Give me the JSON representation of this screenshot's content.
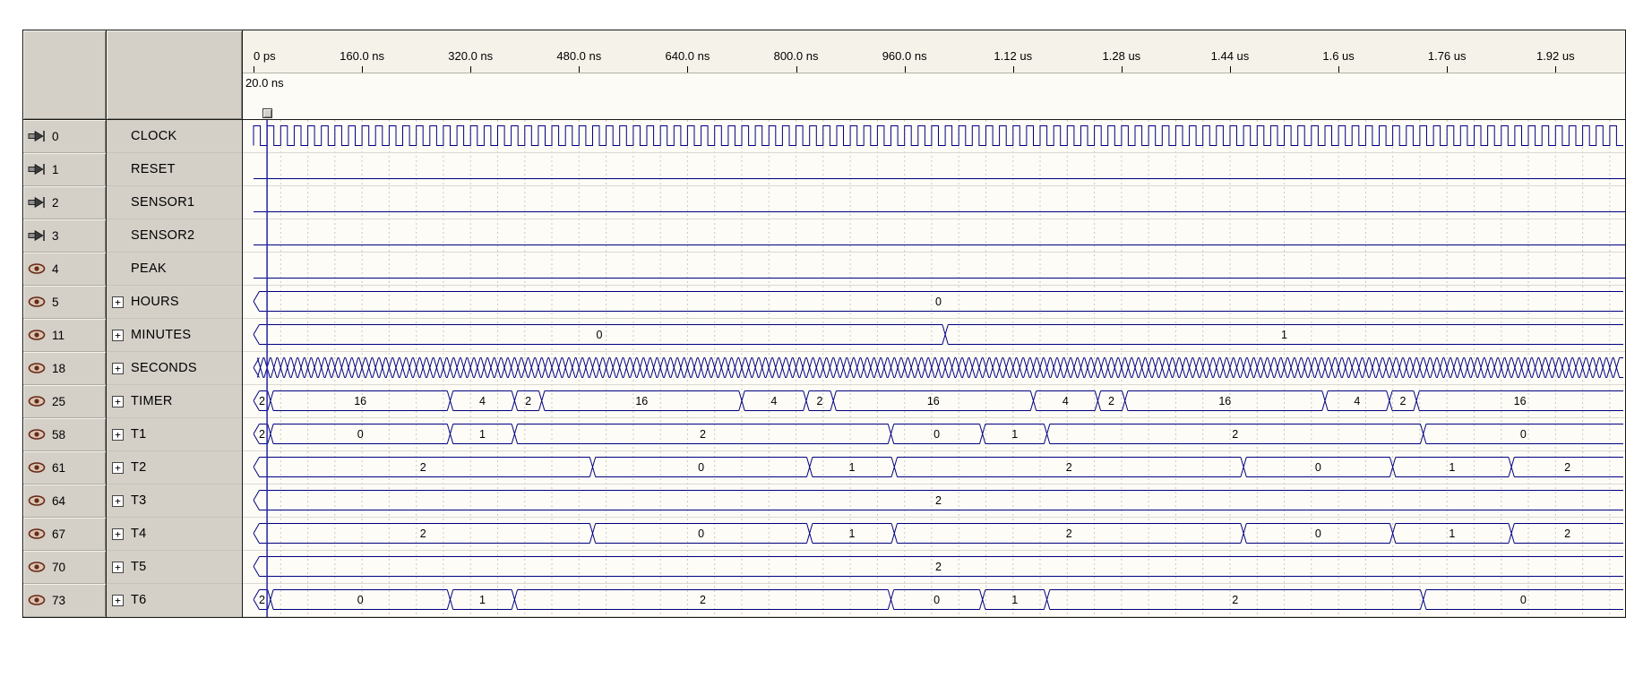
{
  "app": {
    "type": "waveform-simulation-viewer"
  },
  "colors": {
    "panel_bg": "#d4d0c8",
    "wave": "#000080",
    "cursor": "#2323a8",
    "grid": "#cdc9bd",
    "row_separator": "#dcd9cf",
    "header_bg": "#f5f2e9",
    "body_bg": "#fdfcf7",
    "text": "#000000"
  },
  "timebase": {
    "t_end_ns": 2020,
    "cursor_ns": 20,
    "cursor_label": "20.0 ns",
    "major_tick_ns": 160,
    "minor_grid_ns": 40,
    "clock_period_ns": 20,
    "busy_step_ns": 10
  },
  "timeline_ticks": [
    {
      "t": 0,
      "label": "0 ps"
    },
    {
      "t": 160,
      "label": "160.0 ns"
    },
    {
      "t": 320,
      "label": "320.0 ns"
    },
    {
      "t": 480,
      "label": "480.0 ns"
    },
    {
      "t": 640,
      "label": "640.0 ns"
    },
    {
      "t": 800,
      "label": "800.0 ns"
    },
    {
      "t": 960,
      "label": "960.0 ns"
    },
    {
      "t": 1120,
      "label": "1.12 us"
    },
    {
      "t": 1280,
      "label": "1.28 us"
    },
    {
      "t": 1440,
      "label": "1.44 us"
    },
    {
      "t": 1600,
      "label": "1.6 us"
    },
    {
      "t": 1760,
      "label": "1.76 us"
    },
    {
      "t": 1920,
      "label": "1.92 us"
    }
  ],
  "signals": [
    {
      "id": "0",
      "name": "CLOCK",
      "icon": "input-pin",
      "expandable": false,
      "kind": "clock"
    },
    {
      "id": "1",
      "name": "RESET",
      "icon": "input-pin",
      "expandable": false,
      "kind": "bit",
      "level": 0
    },
    {
      "id": "2",
      "name": "SENSOR1",
      "icon": "input-pin",
      "expandable": false,
      "kind": "bit",
      "level": 0
    },
    {
      "id": "3",
      "name": "SENSOR2",
      "icon": "input-pin",
      "expandable": false,
      "kind": "bit",
      "level": 0
    },
    {
      "id": "4",
      "name": "PEAK",
      "icon": "output-node",
      "expandable": false,
      "kind": "bit",
      "level": 0
    },
    {
      "id": "5",
      "name": "HOURS",
      "icon": "output-node",
      "expandable": true,
      "kind": "bus",
      "segments": [
        [
          "0",
          0,
          2020
        ]
      ]
    },
    {
      "id": "11",
      "name": "MINUTES",
      "icon": "output-node",
      "expandable": true,
      "kind": "bus",
      "segments": [
        [
          "0",
          0,
          1020
        ],
        [
          "1",
          1020,
          2020
        ]
      ]
    },
    {
      "id": "18",
      "name": "SECONDS",
      "icon": "output-node",
      "expandable": true,
      "kind": "busy"
    },
    {
      "id": "25",
      "name": "TIMER",
      "icon": "output-node",
      "expandable": true,
      "kind": "bus",
      "segments": [
        [
          "2",
          0,
          25
        ],
        [
          "16",
          25,
          290
        ],
        [
          "4",
          290,
          385
        ],
        [
          "2",
          385,
          425
        ],
        [
          "16",
          425,
          720
        ],
        [
          "4",
          720,
          815
        ],
        [
          "2",
          815,
          855
        ],
        [
          "16",
          855,
          1150
        ],
        [
          "4",
          1150,
          1245
        ],
        [
          "2",
          1245,
          1285
        ],
        [
          "16",
          1285,
          1580
        ],
        [
          "4",
          1580,
          1675
        ],
        [
          "2",
          1675,
          1715
        ],
        [
          "16",
          1715,
          2020
        ]
      ]
    },
    {
      "id": "58",
      "name": "T1",
      "icon": "output-node",
      "expandable": true,
      "kind": "bus",
      "segments": [
        [
          "2",
          0,
          25
        ],
        [
          "0",
          25,
          290
        ],
        [
          "1",
          290,
          385
        ],
        [
          "2",
          385,
          940
        ],
        [
          "0",
          940,
          1075
        ],
        [
          "1",
          1075,
          1170
        ],
        [
          "2",
          1170,
          1725
        ],
        [
          "0",
          1725,
          2020
        ]
      ]
    },
    {
      "id": "61",
      "name": "T2",
      "icon": "output-node",
      "expandable": true,
      "kind": "bus",
      "segments": [
        [
          "2",
          0,
          500
        ],
        [
          "0",
          500,
          820
        ],
        [
          "1",
          820,
          945
        ],
        [
          "2",
          945,
          1460
        ],
        [
          "0",
          1460,
          1680
        ],
        [
          "1",
          1680,
          1855
        ],
        [
          "2",
          1855,
          2020
        ]
      ]
    },
    {
      "id": "64",
      "name": "T3",
      "icon": "output-node",
      "expandable": true,
      "kind": "bus",
      "segments": [
        [
          "2",
          0,
          2020
        ]
      ]
    },
    {
      "id": "67",
      "name": "T4",
      "icon": "output-node",
      "expandable": true,
      "kind": "bus",
      "segments": [
        [
          "2",
          0,
          500
        ],
        [
          "0",
          500,
          820
        ],
        [
          "1",
          820,
          945
        ],
        [
          "2",
          945,
          1460
        ],
        [
          "0",
          1460,
          1680
        ],
        [
          "1",
          1680,
          1855
        ],
        [
          "2",
          1855,
          2020
        ]
      ]
    },
    {
      "id": "70",
      "name": "T5",
      "icon": "output-node",
      "expandable": true,
      "kind": "bus",
      "segments": [
        [
          "2",
          0,
          2020
        ]
      ]
    },
    {
      "id": "73",
      "name": "T6",
      "icon": "output-node",
      "expandable": true,
      "kind": "bus",
      "segments": [
        [
          "2",
          0,
          25
        ],
        [
          "0",
          25,
          290
        ],
        [
          "1",
          290,
          385
        ],
        [
          "2",
          385,
          940
        ],
        [
          "0",
          940,
          1075
        ],
        [
          "1",
          1075,
          1170
        ],
        [
          "2",
          1170,
          1725
        ],
        [
          "0",
          1725,
          2020
        ]
      ]
    }
  ]
}
